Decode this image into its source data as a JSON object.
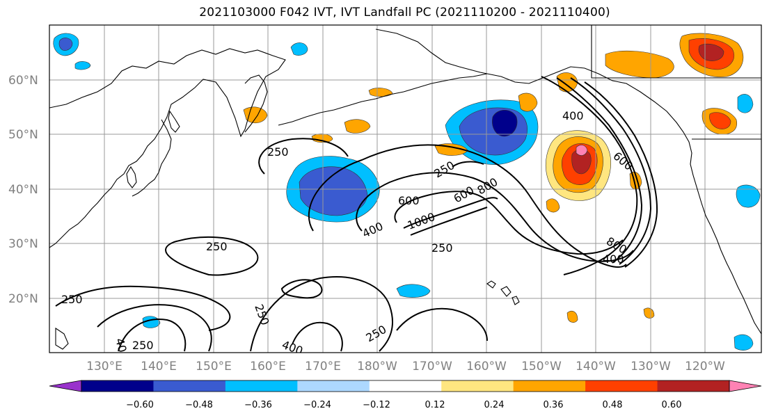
{
  "title": "2021103000 F042 IVT, IVT Landfall PC (2021110200 - 2021110400)",
  "lat_labels": [
    "60°N",
    "50°N",
    "40°N",
    "30°N",
    "20°N"
  ],
  "lon_labels": [
    "130°E",
    "140°E",
    "150°E",
    "160°E",
    "170°E",
    "180°W",
    "170°W",
    "160°W",
    "150°W",
    "140°W",
    "130°W",
    "120°W"
  ],
  "colorbar": {
    "tick_labels": [
      "−0.60",
      "−0.48",
      "−0.36",
      "−0.24",
      "−0.12",
      "0.12",
      "0.24",
      "0.36",
      "0.48",
      "0.60"
    ],
    "colors": [
      "#9932cc",
      "#00008b",
      "#3a5bd0",
      "#00bfff",
      "#add8ff",
      "#ffffff",
      "#ffe680",
      "#ffa500",
      "#ff4000",
      "#b22222",
      "#ff82b4"
    ]
  },
  "ivt_contour_labels": [
    "250",
    "250",
    "250",
    "250",
    "250",
    "250",
    "250",
    "250",
    "400",
    "400",
    "400",
    "400",
    "400",
    "600",
    "600",
    "600",
    "800",
    "800",
    "1000"
  ]
}
